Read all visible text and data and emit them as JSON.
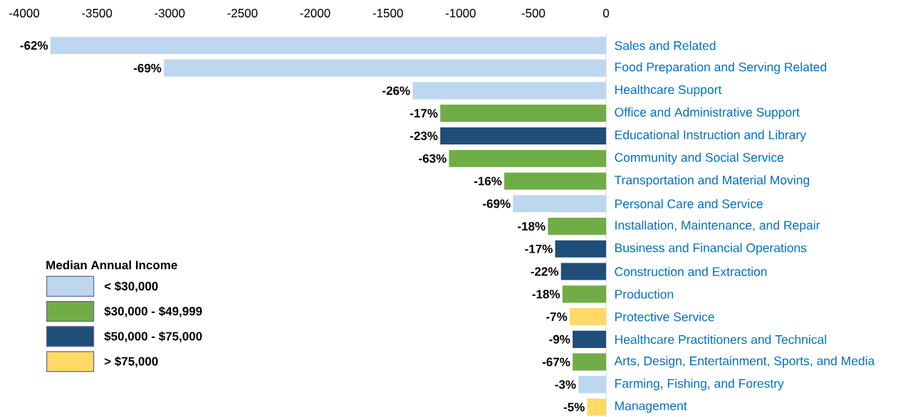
{
  "chart_data": {
    "type": "bar",
    "orientation": "horizontal",
    "legend_title": "Median Annual Income",
    "legend": "bottom left",
    "categories": [
      "Sales and Related",
      "Food Preparation and Serving Related",
      "Healthcare Support",
      "Office and Administrative Support",
      "Educational Instruction and Library",
      "Community and Social Service",
      "Transportation and Material Moving",
      "Personal Care and Service",
      "Installation, Maintenance, and Repair",
      "Business and Financial Operations",
      "Construction and Extraction",
      "Production",
      "Protective Service",
      "Healthcare Practitioners and Technical",
      "Arts, Design, Entertainment, Sports, and Media",
      "Farming, Fishing, and Forestry",
      "Management"
    ],
    "xlim": [
      -4000,
      0
    ],
    "xticks": [
      -4000,
      -3500,
      -3000,
      -2500,
      -2000,
      -1500,
      -1000,
      -500,
      0
    ],
    "series": [
      {
        "name": "< $30,000",
        "color": "#bdd7ee",
        "values": [
          -3820,
          -3040,
          -1330,
          null,
          null,
          null,
          null,
          -640,
          null,
          null,
          null,
          null,
          null,
          null,
          null,
          -190,
          null
        ]
      },
      {
        "name": "$30,000 - $49,999",
        "color": "#70ad47",
        "values": [
          null,
          null,
          null,
          -1140,
          null,
          -1080,
          -700,
          null,
          -400,
          null,
          null,
          -300,
          null,
          null,
          -230,
          null,
          null
        ]
      },
      {
        "name": "$50,000 - $75,000",
        "color": "#1f4e79",
        "values": [
          null,
          null,
          null,
          null,
          -1140,
          null,
          null,
          null,
          null,
          -350,
          -310,
          null,
          null,
          -230,
          null,
          null,
          null
        ]
      },
      {
        "name": "> $75,000",
        "color": "#ffd966",
        "values": [
          null,
          null,
          null,
          null,
          null,
          null,
          null,
          null,
          null,
          null,
          null,
          null,
          -250,
          null,
          null,
          null,
          -130
        ]
      }
    ],
    "annotations": [
      {
        "text": "-62%",
        "x": -3820,
        "y": "Sales and Related"
      },
      {
        "text": "-69%",
        "x": -3040,
        "y": "Food Preparation and Serving Related"
      },
      {
        "text": "-26%",
        "x": -1330,
        "y": "Healthcare Support"
      },
      {
        "text": "-17%",
        "x": -1140,
        "y": "Office and Administrative Support"
      },
      {
        "text": "-23%",
        "x": -1140,
        "y": "Educational Instruction and Library"
      },
      {
        "text": "-63%",
        "x": -1080,
        "y": "Community and Social Service"
      },
      {
        "text": "-16%",
        "x": -700,
        "y": "Transportation and Material Moving"
      },
      {
        "text": "-69%",
        "x": -640,
        "y": "Personal Care and Service"
      },
      {
        "text": "-18%",
        "x": -400,
        "y": "Installation, Maintenance, and Repair"
      },
      {
        "text": "-17%",
        "x": -350,
        "y": "Business and Financial Operations"
      },
      {
        "text": "-22%",
        "x": -310,
        "y": "Construction and Extraction"
      },
      {
        "text": "-18%",
        "x": -300,
        "y": "Production"
      },
      {
        "text": "-7%",
        "x": -250,
        "y": "Protective Service"
      },
      {
        "text": "-9%",
        "x": -230,
        "y": "Healthcare Practitioners and Technical"
      },
      {
        "text": "-67%",
        "x": -230,
        "y": "Arts, Design, Entertainment, Sports, and Media"
      },
      {
        "text": "-3%",
        "x": -190,
        "y": "Farming, Fishing, and Forestry"
      },
      {
        "text": "-5%",
        "x": -130,
        "y": "Management"
      }
    ]
  }
}
